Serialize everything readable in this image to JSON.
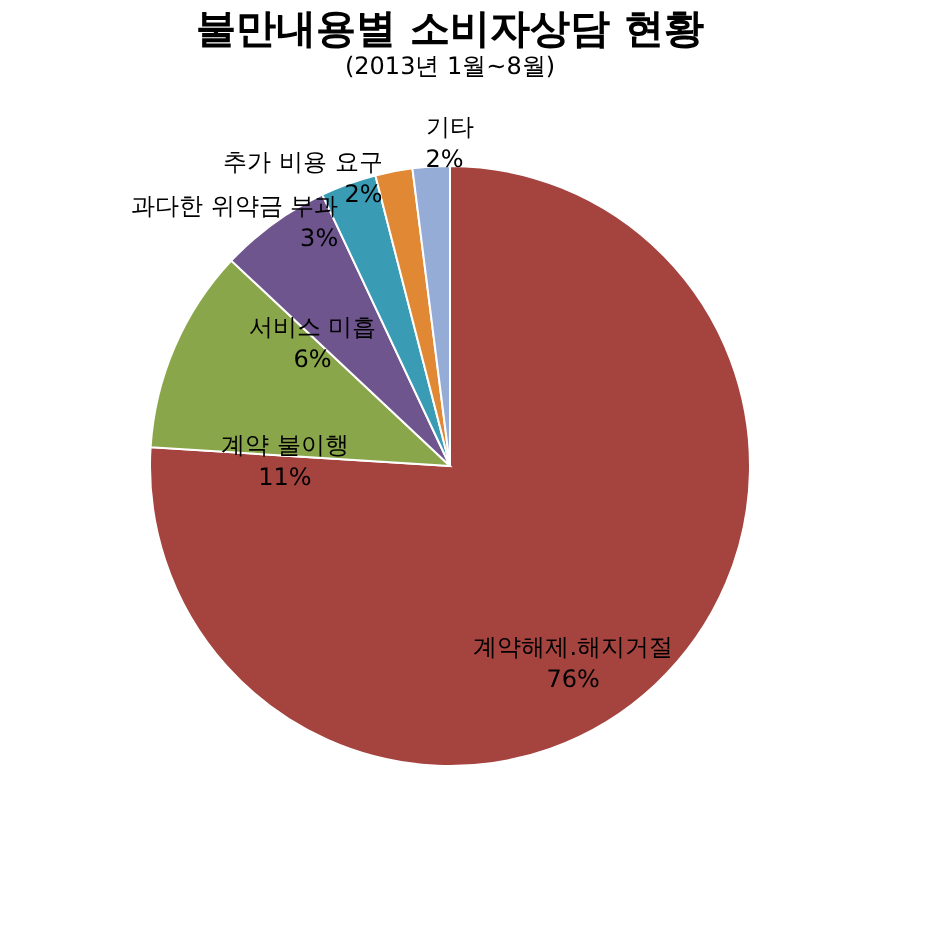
{
  "chart_data": {
    "type": "pie",
    "title": "불만내용별 소비자상담 현황",
    "subtitle": "(2013년 1월~8월)",
    "categories": [
      "계약해제.해지거절",
      "계약 불이행",
      "서비스 미흡",
      "과다한 위약금 부과",
      "추가 비용 요구",
      "기타"
    ],
    "values": [
      76,
      11,
      6,
      3,
      2,
      2
    ],
    "value_labels": [
      "76%",
      "11%",
      "6%",
      "3%",
      "2%",
      "2%"
    ],
    "colors": [
      "#a5433f",
      "#8aa64a",
      "#6e558e",
      "#3a9bb5",
      "#e08834",
      "#95acd6"
    ],
    "legend": false
  }
}
